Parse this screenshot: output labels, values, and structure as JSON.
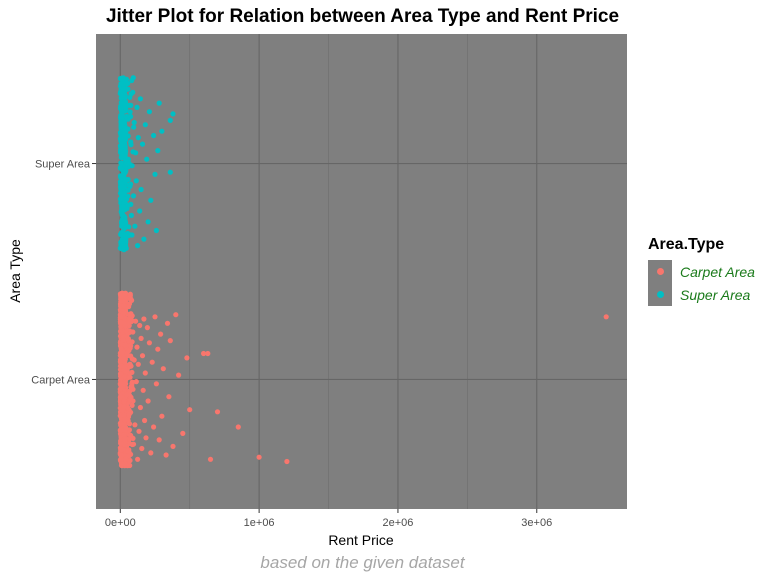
{
  "chart_data": {
    "type": "scatter",
    "title": "Jitter Plot for Relation between Area Type and Rent Price",
    "xlabel": "Rent Price",
    "ylabel": "Area Type",
    "categories": [
      "Carpet Area",
      "Super Area"
    ],
    "xlim": [
      -175000,
      3650000
    ],
    "x_ticks": [
      0,
      1000000,
      2000000,
      3000000
    ],
    "x_tick_labels": [
      "0e+00",
      "1e+06",
      "2e+06",
      "3e+06"
    ],
    "grid": true,
    "legend": {
      "title": "Area.Type",
      "position": "right"
    },
    "caption": "based on the given dataset",
    "series": [
      {
        "name": "Carpet Area",
        "color": "#F8766D",
        "points": [
          [
            3500000,
            0.29
          ],
          [
            1200000,
            -0.38
          ],
          [
            1000000,
            -0.36
          ],
          [
            850000,
            -0.22
          ],
          [
            700000,
            -0.15
          ],
          [
            650000,
            -0.37
          ],
          [
            630000,
            0.12
          ],
          [
            600000,
            0.12
          ],
          [
            500000,
            -0.14
          ],
          [
            480000,
            0.1
          ],
          [
            450000,
            -0.25
          ],
          [
            420000,
            0.02
          ],
          [
            400000,
            0.3
          ],
          [
            380000,
            -0.31
          ],
          [
            360000,
            0.18
          ],
          [
            350000,
            -0.08
          ],
          [
            340000,
            0.26
          ],
          [
            330000,
            -0.35
          ],
          [
            310000,
            0.05
          ],
          [
            300000,
            -0.17
          ],
          [
            290000,
            0.21
          ],
          [
            280000,
            -0.28
          ],
          [
            270000,
            0.14
          ],
          [
            260000,
            -0.02
          ],
          [
            250000,
            0.29
          ],
          [
            240000,
            -0.22
          ],
          [
            230000,
            0.08
          ],
          [
            220000,
            -0.34
          ],
          [
            210000,
            0.17
          ],
          [
            200000,
            -0.1
          ],
          [
            195000,
            0.24
          ],
          [
            185000,
            -0.27
          ],
          [
            180000,
            0.03
          ],
          [
            175000,
            -0.19
          ],
          [
            170000,
            0.28
          ],
          [
            165000,
            -0.05
          ],
          [
            160000,
            0.11
          ],
          [
            155000,
            -0.32
          ],
          [
            150000,
            0.19
          ],
          [
            145000,
            -0.13
          ],
          [
            140000,
            0.25
          ],
          [
            135000,
            -0.24
          ],
          [
            130000,
            0.07
          ],
          [
            125000,
            -0.37
          ],
          [
            120000,
            0.15
          ],
          [
            115000,
            -0.01
          ],
          [
            110000,
            0.27
          ],
          [
            105000,
            -0.21
          ],
          [
            100000,
            0.09
          ],
          [
            95000,
            -0.3
          ],
          [
            90000,
            0.22
          ],
          [
            85000,
            -0.12
          ],
          [
            80000,
            0.29
          ],
          [
            75000,
            -0.26
          ],
          [
            70000,
            0.01
          ],
          [
            65000,
            -0.16
          ],
          [
            60000,
            0.18
          ],
          [
            55000,
            -0.33
          ],
          [
            50000,
            0.12
          ],
          [
            45000,
            -0.07
          ]
        ]
      },
      {
        "name": "Super Area",
        "color": "#00BFC4",
        "points": [
          [
            380000,
            0.23
          ],
          [
            360000,
            0.2
          ],
          [
            360000,
            -0.04
          ],
          [
            300000,
            0.15
          ],
          [
            280000,
            0.28
          ],
          [
            270000,
            0.06
          ],
          [
            260000,
            -0.31
          ],
          [
            250000,
            -0.05
          ],
          [
            240000,
            0.13
          ],
          [
            220000,
            -0.17
          ],
          [
            210000,
            0.24
          ],
          [
            200000,
            -0.27
          ],
          [
            190000,
            0.02
          ],
          [
            180000,
            0.18
          ],
          [
            170000,
            -0.35
          ],
          [
            160000,
            0.09
          ],
          [
            150000,
            -0.12
          ],
          [
            145000,
            0.3
          ],
          [
            140000,
            -0.22
          ],
          [
            130000,
            0.12
          ],
          [
            125000,
            -0.38
          ],
          [
            120000,
            0.26
          ],
          [
            115000,
            -0.08
          ],
          [
            110000,
            0.05
          ],
          [
            105000,
            -0.29
          ],
          [
            100000,
            0.19
          ],
          [
            95000,
            -0.15
          ],
          [
            90000,
            0.33
          ],
          [
            85000,
            -0.01
          ],
          [
            80000,
            -0.24
          ],
          [
            75000,
            0.1
          ],
          [
            70000,
            -0.33
          ],
          [
            65000,
            0.27
          ],
          [
            60000,
            -0.1
          ],
          [
            55000,
            0.16
          ],
          [
            50000,
            -0.2
          ]
        ]
      }
    ]
  }
}
